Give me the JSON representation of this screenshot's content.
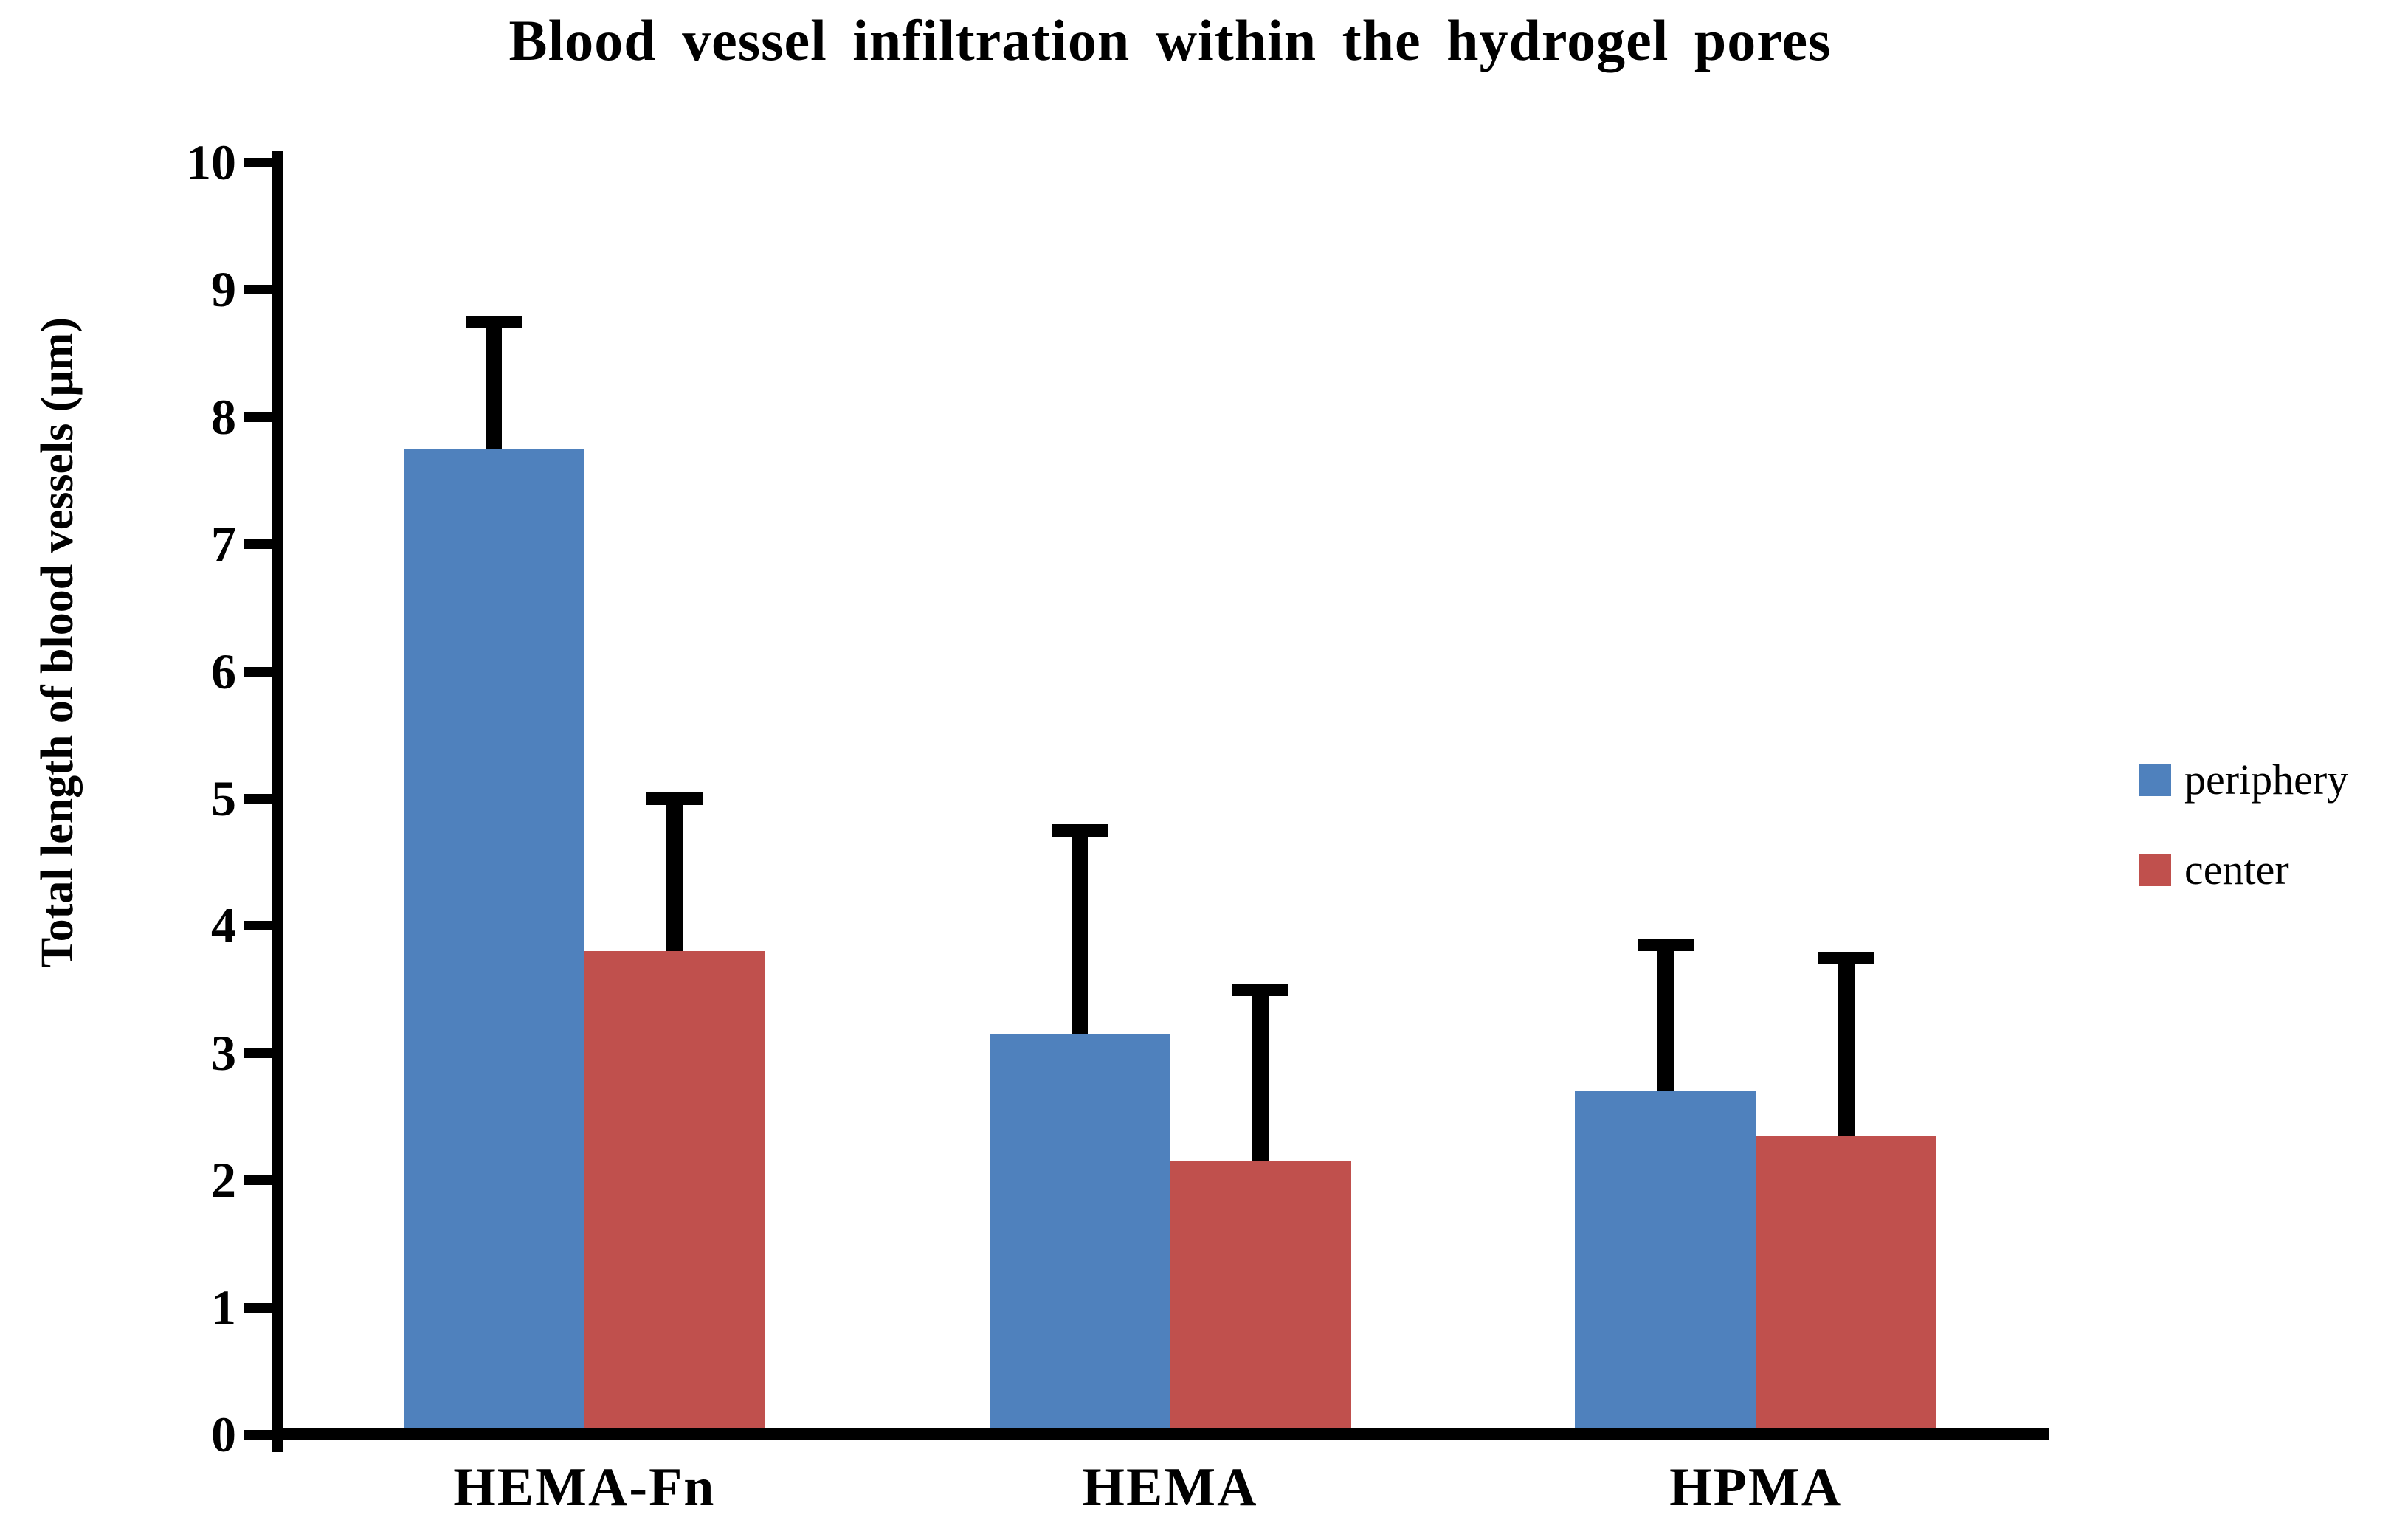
{
  "chart_data": {
    "type": "bar",
    "title": "Blood vessel infiltration within the hydrogel pores",
    "ylabel": "Total length of blood vessels (μm)",
    "xlabel": "",
    "categories": [
      "HEMA-Fn",
      "HEMA",
      "HPMA"
    ],
    "series": [
      {
        "name": "periphery",
        "color": "#4F81BD",
        "values": [
          7.75,
          3.15,
          2.7
        ],
        "errors_plus": [
          1.0,
          1.6,
          1.15
        ]
      },
      {
        "name": "center",
        "color": "#C0504D",
        "values": [
          3.8,
          2.15,
          2.35
        ],
        "errors_plus": [
          1.2,
          1.35,
          1.4
        ]
      }
    ],
    "ylim": [
      0,
      10
    ],
    "yticks": [
      0,
      1,
      2,
      3,
      4,
      5,
      6,
      7,
      8,
      9,
      10
    ],
    "grid": false,
    "legend_position": "right-middle",
    "axis_color": "#000000",
    "error_bar_color": "#000000",
    "background_color": "#ffffff"
  }
}
